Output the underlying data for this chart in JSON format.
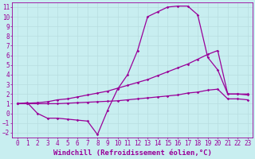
{
  "xlabel": "Windchill (Refroidissement éolien,°C)",
  "bg_color": "#c8eef0",
  "line_color": "#990099",
  "grid_color": "#b8dde0",
  "xlim": [
    -0.5,
    23.5
  ],
  "ylim": [
    -2.5,
    11.5
  ],
  "xticks": [
    0,
    1,
    2,
    3,
    4,
    5,
    6,
    7,
    8,
    9,
    10,
    11,
    12,
    13,
    14,
    15,
    16,
    17,
    18,
    19,
    20,
    21,
    22,
    23
  ],
  "yticks": [
    -2,
    -1,
    0,
    1,
    2,
    3,
    4,
    5,
    6,
    7,
    8,
    9,
    10,
    11
  ],
  "line1_x": [
    0,
    1,
    2,
    3,
    4,
    5,
    6,
    7,
    8,
    9,
    10,
    11,
    12,
    13,
    14,
    15,
    16,
    17,
    18,
    19,
    20,
    21,
    22,
    23
  ],
  "line1_y": [
    1.0,
    1.1,
    0.0,
    -0.5,
    -0.5,
    -0.6,
    -0.7,
    -0.8,
    -2.2,
    0.3,
    2.5,
    4.0,
    6.5,
    10.0,
    10.5,
    11.0,
    11.1,
    11.1,
    10.2,
    5.8,
    4.5,
    2.0,
    2.0,
    2.0
  ],
  "line2_x": [
    0,
    1,
    2,
    3,
    4,
    5,
    6,
    7,
    8,
    9,
    10,
    11,
    12,
    13,
    14,
    15,
    16,
    17,
    18,
    19,
    20,
    21,
    22,
    23
  ],
  "line2_y": [
    1.0,
    1.05,
    1.1,
    1.2,
    1.4,
    1.5,
    1.7,
    1.9,
    2.1,
    2.3,
    2.6,
    2.9,
    3.2,
    3.5,
    3.9,
    4.3,
    4.7,
    5.1,
    5.6,
    6.1,
    6.5,
    2.0,
    2.0,
    1.9
  ],
  "line3_x": [
    0,
    1,
    2,
    3,
    4,
    5,
    6,
    7,
    8,
    9,
    10,
    11,
    12,
    13,
    14,
    15,
    16,
    17,
    18,
    19,
    20,
    21,
    22,
    23
  ],
  "line3_y": [
    1.0,
    1.0,
    1.0,
    1.0,
    1.0,
    1.05,
    1.1,
    1.15,
    1.2,
    1.25,
    1.3,
    1.4,
    1.5,
    1.6,
    1.7,
    1.8,
    1.9,
    2.1,
    2.2,
    2.4,
    2.5,
    1.5,
    1.5,
    1.4
  ],
  "font_family": "monospace",
  "tick_fontsize": 5.5,
  "label_fontsize": 6.5
}
